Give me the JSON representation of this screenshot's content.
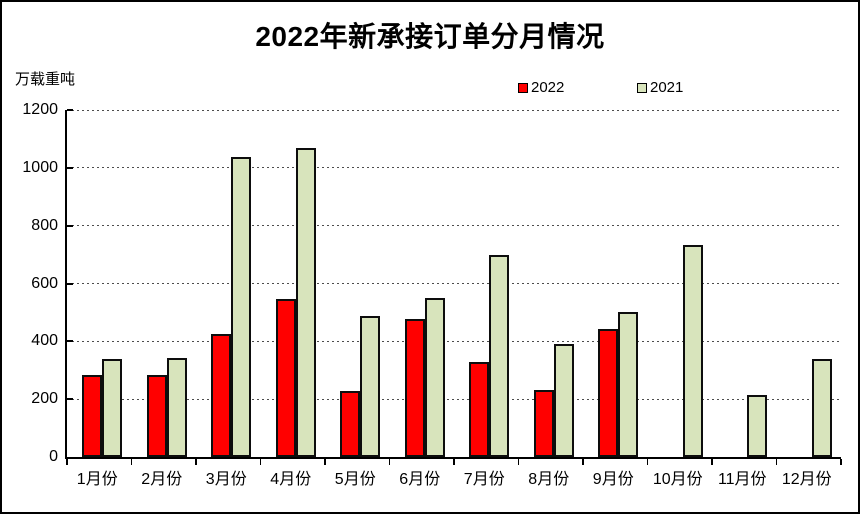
{
  "chart_data": {
    "type": "bar",
    "title": "2022年新承接订单分月情况",
    "unit_label": "万载重吨",
    "categories": [
      "1月份",
      "2月份",
      "3月份",
      "4月份",
      "5月份",
      "6月份",
      "7月份",
      "8月份",
      "9月份",
      "10月份",
      "11月份",
      "12月份"
    ],
    "series": [
      {
        "name": "2022",
        "color": "#ff0000",
        "values": [
          284,
          285,
          427,
          546,
          230,
          476,
          327,
          231,
          441,
          null,
          null,
          null
        ]
      },
      {
        "name": "2021",
        "color": "#d8e4bc",
        "values": [
          339,
          343,
          1039,
          1067,
          488,
          551,
          699,
          390,
          502,
          732,
          216,
          340
        ]
      }
    ],
    "ylabel": "",
    "xlabel": "",
    "ylim": [
      0,
      1200
    ],
    "ytick_step": 200,
    "yticks": [
      0,
      200,
      400,
      600,
      800,
      1000,
      1200
    ],
    "grid": "horizontal-dashed",
    "legend_position": "top-center",
    "axis_color": "#000000",
    "background_color": "#ffffff"
  }
}
